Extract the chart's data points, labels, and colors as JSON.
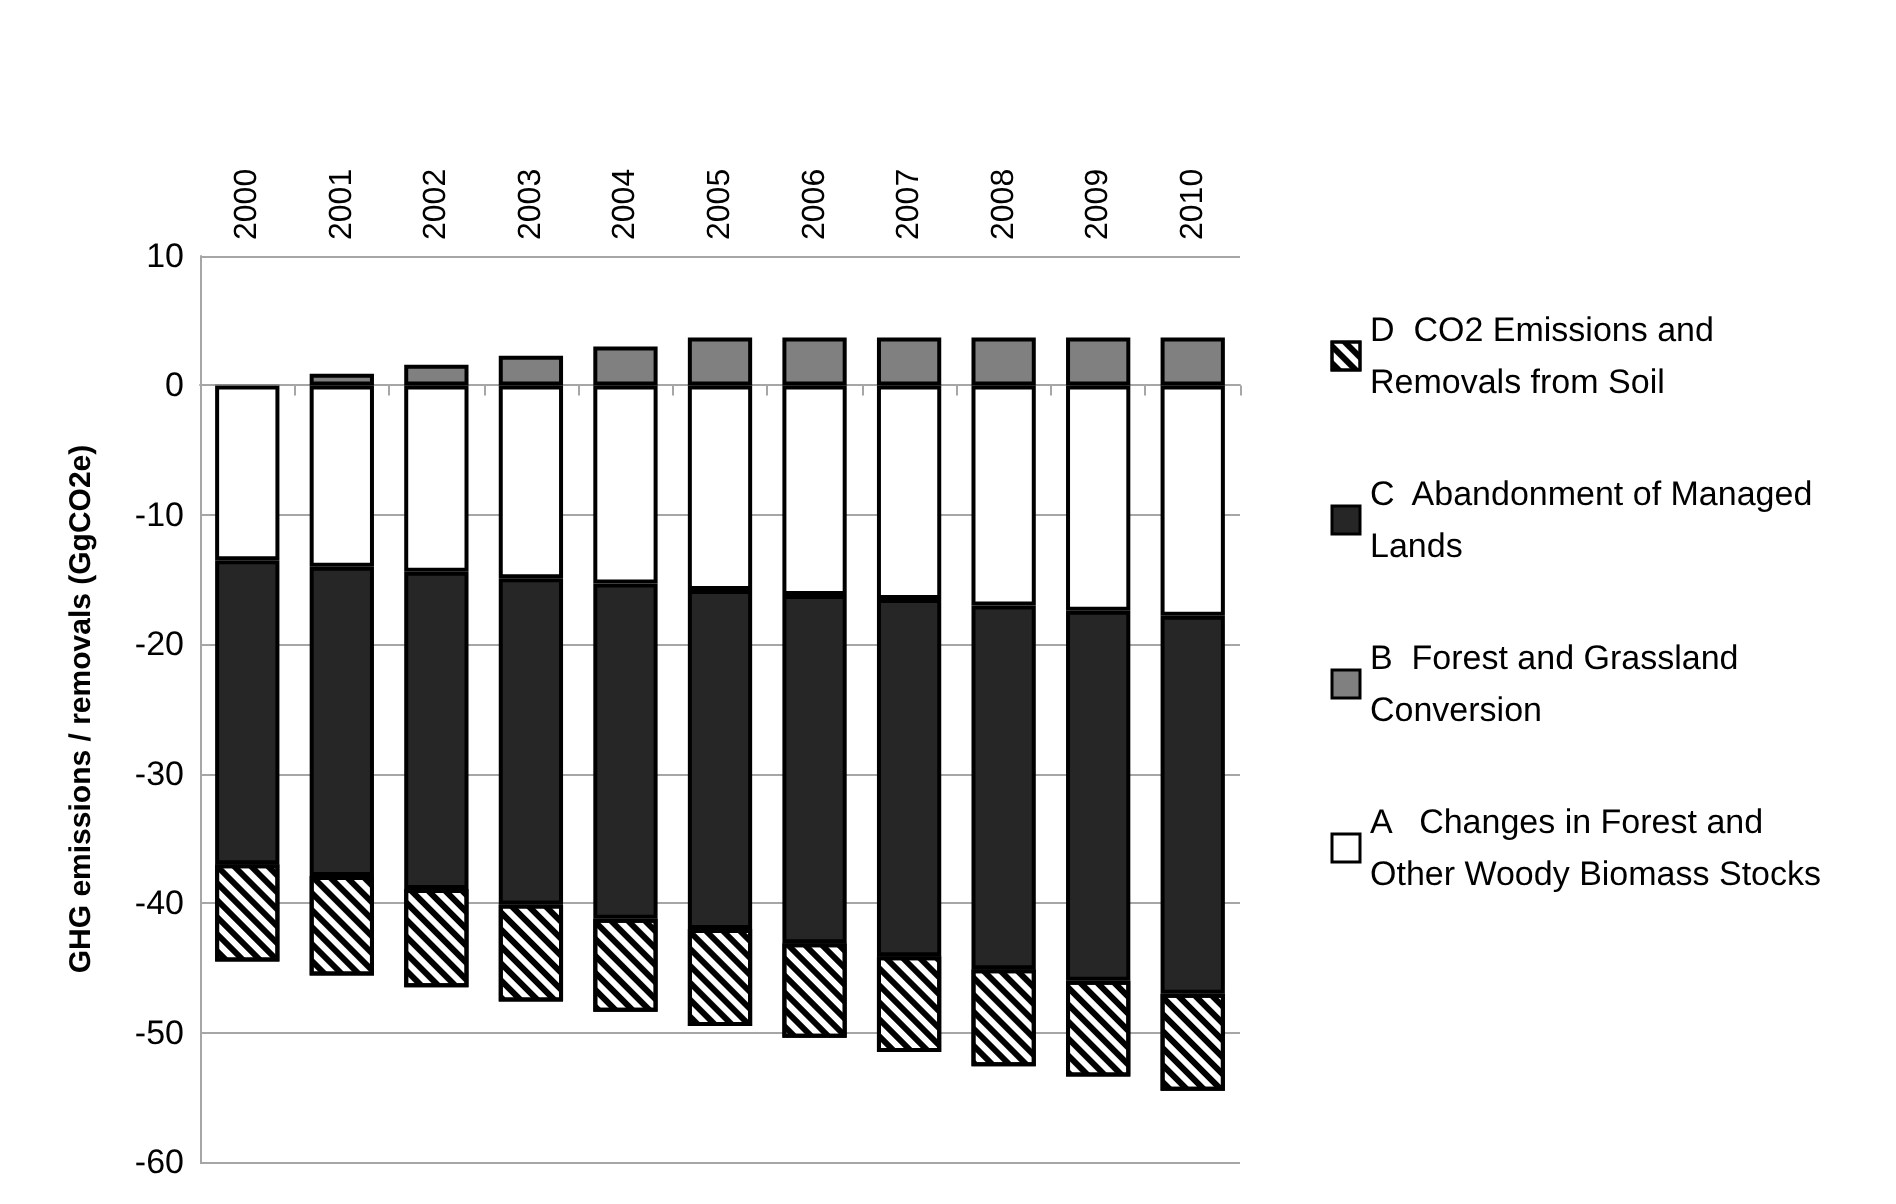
{
  "chart_data": {
    "type": "bar",
    "stacked": true,
    "ylabel": "GHG emissions / removals (GgCO2e)",
    "categories": [
      "2000",
      "2001",
      "2002",
      "2003",
      "2004",
      "2005",
      "2006",
      "2007",
      "2008",
      "2009",
      "2010"
    ],
    "series": [
      {
        "name": "A   Changes in Forest and Other Woody Biomass Stocks",
        "color": "#ffffff",
        "values": [
          -13.5,
          -14.0,
          -14.4,
          -14.9,
          -15.3,
          -15.8,
          -16.2,
          -16.5,
          -17.0,
          -17.4,
          -17.8
        ]
      },
      {
        "name": "B  Forest and Grassland Conversion",
        "color": "#808080",
        "values": [
          0.1,
          0.9,
          1.6,
          2.3,
          3.0,
          3.7,
          3.7,
          3.7,
          3.7,
          3.7,
          3.7
        ]
      },
      {
        "name": "C  Abandonment of Managed Lands",
        "color": "#262626",
        "values": [
          -23.5,
          -23.9,
          -24.5,
          -25.2,
          -25.9,
          -26.2,
          -26.9,
          -27.6,
          -28.1,
          -28.6,
          -29.2
        ]
      },
      {
        "name": "D  CO2 Emissions and Removals from Soil",
        "color": "#ffffff",
        "values": [
          -7.5,
          -7.7,
          -7.6,
          -7.5,
          -7.2,
          -7.5,
          -7.3,
          -7.4,
          -7.5,
          -7.4,
          -7.5
        ]
      }
    ],
    "ylim": [
      -60,
      10
    ],
    "yticks": [
      -60,
      -50,
      -40,
      -30,
      -20,
      -10,
      0,
      10
    ],
    "grid": "y",
    "legend": "right"
  }
}
